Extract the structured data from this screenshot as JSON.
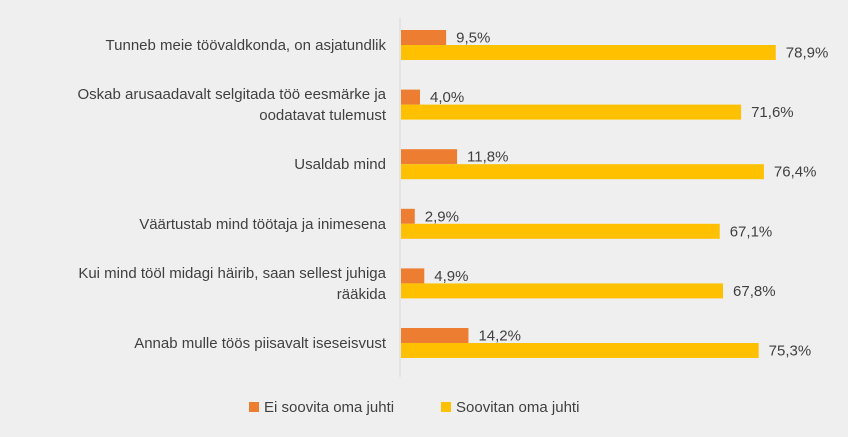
{
  "chart_data": {
    "type": "bar",
    "orientation": "horizontal",
    "categories": [
      [
        "Tunneb meie töövaldkonda, on asjatundlik"
      ],
      [
        "Oskab arusaadavalt selgitada töö eesmärke ja",
        "oodatavat tulemust"
      ],
      [
        "Usaldab mind"
      ],
      [
        "Väärtustab mind töötaja ja inimesena"
      ],
      [
        "Kui mind tööl midagi häirib, saan sellest juhiga",
        "rääkida"
      ],
      [
        "Annab mulle töös piisavalt iseseisvust"
      ]
    ],
    "series": [
      {
        "name": "Ei soovita oma juhti",
        "color": "#ed7d31",
        "values": [
          9.5,
          4.0,
          11.8,
          2.9,
          4.9,
          14.2
        ],
        "labels": [
          "9,5%",
          "4,0%",
          "11,8%",
          "2,9%",
          "4,9%",
          "14,2%"
        ]
      },
      {
        "name": "Soovitan oma juhti",
        "color": "#ffc000",
        "values": [
          78.9,
          71.6,
          76.4,
          67.1,
          67.8,
          75.3
        ],
        "labels": [
          "78,9%",
          "71,6%",
          "76,4%",
          "67,1%",
          "67,8%",
          "75,3%"
        ]
      }
    ],
    "xlim": [
      0,
      100
    ],
    "grid": false,
    "legend": "bottom"
  }
}
